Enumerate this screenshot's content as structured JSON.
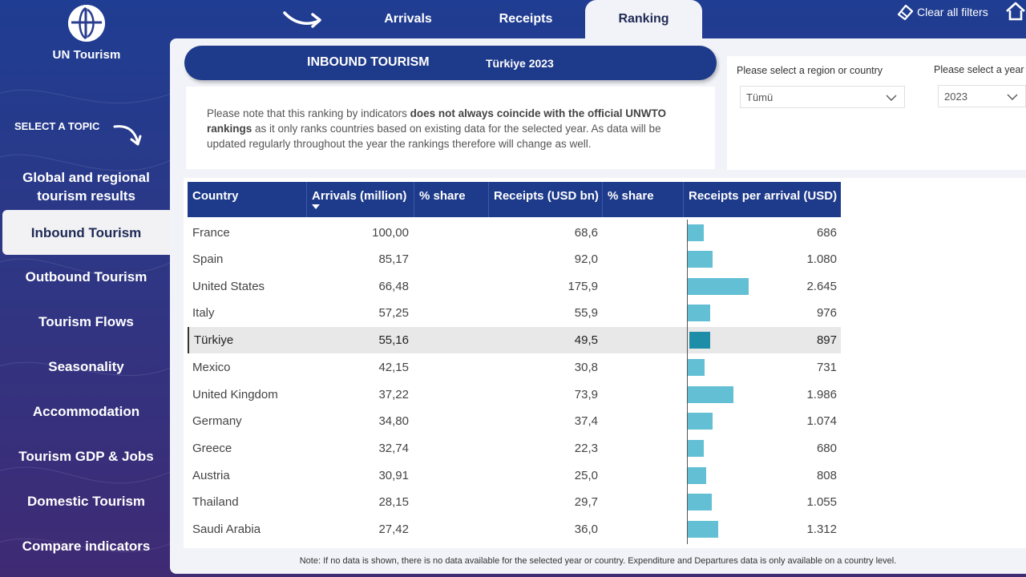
{
  "brand": {
    "name": "UN Tourism"
  },
  "sidebar": {
    "heading": "SELECT A TOPIC",
    "items": [
      {
        "label": "Global and regional tourism results"
      },
      {
        "label": "Inbound Tourism"
      },
      {
        "label": "Outbound Tourism"
      },
      {
        "label": "Tourism Flows"
      },
      {
        "label": "Seasonality"
      },
      {
        "label": "Accommodation"
      },
      {
        "label": "Tourism GDP & Jobs"
      },
      {
        "label": "Domestic Tourism"
      },
      {
        "label": "Compare indicators"
      }
    ],
    "active_index": 1
  },
  "tabs": [
    {
      "label": "Arrivals"
    },
    {
      "label": "Receipts"
    },
    {
      "label": "Ranking"
    }
  ],
  "toolbar": {
    "clear_filters": "Clear all filters"
  },
  "header": {
    "title": "INBOUND TOURISM",
    "subtitle": "Türkiye 2023"
  },
  "note": {
    "part1": "Please note that this ranking by indicators ",
    "bold": "does not always coincide with the official UNWTO rankings",
    "part2": " as it only ranks countries based on existing data for the selected year. As data will be updated regularly throughout the year the rankings therefore will change as well."
  },
  "filters": {
    "region_label": "Please select a region or country",
    "region_value": "Tümü",
    "year_label": "Please select a year",
    "year_value": "2023"
  },
  "table": {
    "columns": [
      "Country",
      "Arrivals (million)",
      "% share",
      "Receipts (USD bn)",
      "% share",
      "Receipts per arrival (USD)"
    ],
    "rows": [
      {
        "country": "France",
        "arrivals": "100,00",
        "arrivals_share": "",
        "receipts": "68,6",
        "receipts_share": "",
        "per_arrival": "686",
        "per_arrival_value": 686
      },
      {
        "country": "Spain",
        "arrivals": "85,17",
        "arrivals_share": "",
        "receipts": "92,0",
        "receipts_share": "",
        "per_arrival": "1.080",
        "per_arrival_value": 1080
      },
      {
        "country": "United States",
        "arrivals": "66,48",
        "arrivals_share": "",
        "receipts": "175,9",
        "receipts_share": "",
        "per_arrival": "2.645",
        "per_arrival_value": 2645
      },
      {
        "country": "Italy",
        "arrivals": "57,25",
        "arrivals_share": "",
        "receipts": "55,9",
        "receipts_share": "",
        "per_arrival": "976",
        "per_arrival_value": 976
      },
      {
        "country": "Türkiye",
        "arrivals": "55,16",
        "arrivals_share": "",
        "receipts": "49,5",
        "receipts_share": "",
        "per_arrival": "897",
        "per_arrival_value": 897,
        "highlight": true
      },
      {
        "country": "Mexico",
        "arrivals": "42,15",
        "arrivals_share": "",
        "receipts": "30,8",
        "receipts_share": "",
        "per_arrival": "731",
        "per_arrival_value": 731
      },
      {
        "country": "United Kingdom",
        "arrivals": "37,22",
        "arrivals_share": "",
        "receipts": "73,9",
        "receipts_share": "",
        "per_arrival": "1.986",
        "per_arrival_value": 1986
      },
      {
        "country": "Germany",
        "arrivals": "34,80",
        "arrivals_share": "",
        "receipts": "37,4",
        "receipts_share": "",
        "per_arrival": "1.074",
        "per_arrival_value": 1074
      },
      {
        "country": "Greece",
        "arrivals": "32,74",
        "arrivals_share": "",
        "receipts": "22,3",
        "receipts_share": "",
        "per_arrival": "680",
        "per_arrival_value": 680
      },
      {
        "country": "Austria",
        "arrivals": "30,91",
        "arrivals_share": "",
        "receipts": "25,0",
        "receipts_share": "",
        "per_arrival": "808",
        "per_arrival_value": 808
      },
      {
        "country": "Thailand",
        "arrivals": "28,15",
        "arrivals_share": "",
        "receipts": "29,7",
        "receipts_share": "",
        "per_arrival": "1.055",
        "per_arrival_value": 1055
      },
      {
        "country": "Saudi Arabia",
        "arrivals": "27,42",
        "arrivals_share": "",
        "receipts": "36,0",
        "receipts_share": "",
        "per_arrival": "1.312",
        "per_arrival_value": 1312
      }
    ]
  },
  "footer": {
    "note": "Note: If no data is shown, there is no data available for the selected year or country. Expenditure and Departures data is only available on a country level."
  },
  "colors": {
    "navy": "#1e3a8a",
    "bar": "#63bfd4",
    "bar_highlight": "#1e8ea8"
  },
  "icons": {
    "logo": "globe-logo-icon",
    "arrow": "curved-arrow-icon",
    "eraser": "eraser-icon",
    "home": "home-icon",
    "chevron": "chevron-down-icon",
    "sort": "sort-desc-icon"
  }
}
